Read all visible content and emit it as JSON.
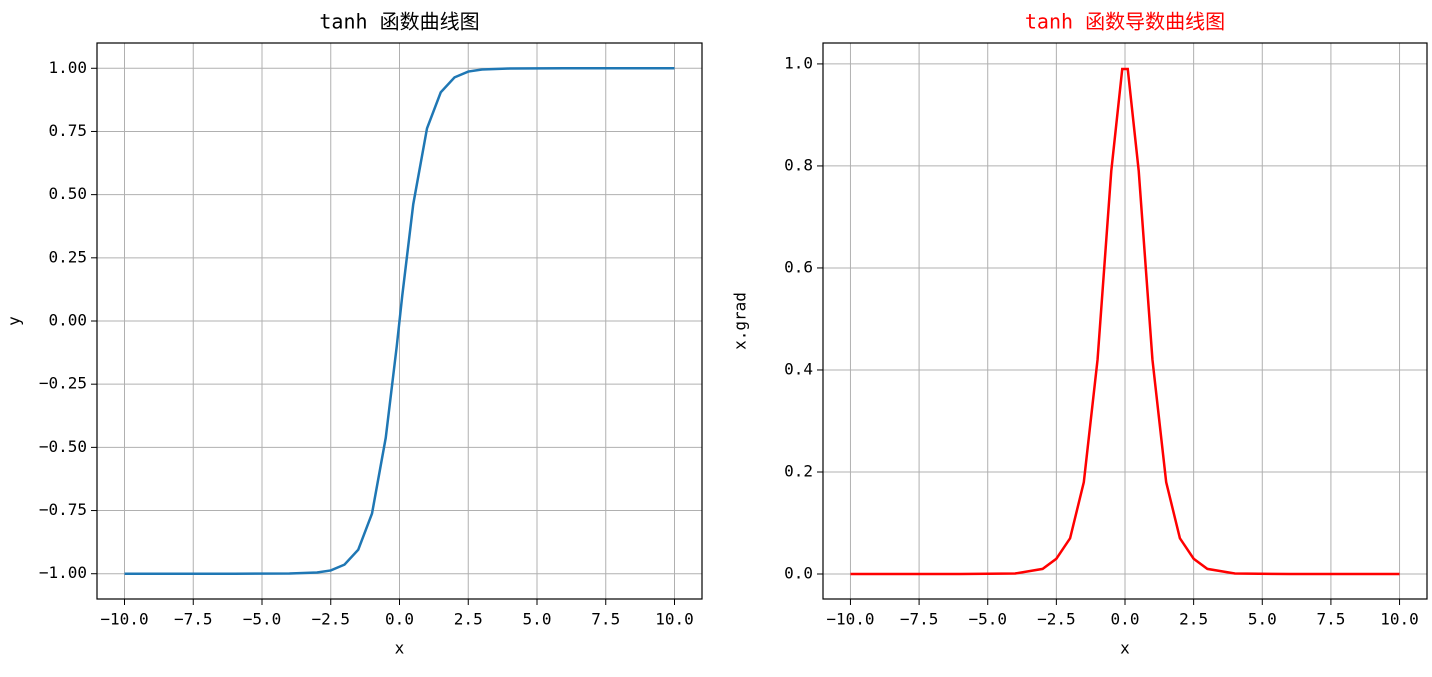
{
  "chart_data": [
    {
      "type": "line",
      "title": "tanh 函数曲线图",
      "title_color": "#000000",
      "xlabel": "x",
      "ylabel": "y",
      "x": [
        -10,
        -8,
        -6,
        -4,
        -3,
        -2.5,
        -2,
        -1.5,
        -1,
        -0.5,
        -0.1,
        0.1,
        0.5,
        1,
        1.5,
        2,
        2.5,
        3,
        4,
        6,
        8,
        10
      ],
      "series": [
        {
          "name": "tanh",
          "color": "#1f77b4",
          "values": [
            -1,
            -1,
            -1,
            -0.999,
            -0.995,
            -0.987,
            -0.964,
            -0.905,
            -0.762,
            -0.462,
            -0.1,
            0.1,
            0.462,
            0.762,
            0.905,
            0.964,
            0.987,
            0.995,
            0.999,
            1,
            1,
            1
          ]
        }
      ],
      "xlim": [
        -11,
        11
      ],
      "ylim": [
        -1.1,
        1.1
      ],
      "xticks": [
        {
          "value": -10,
          "label": "−10.0"
        },
        {
          "value": -7.5,
          "label": "−7.5"
        },
        {
          "value": -5,
          "label": "−5.0"
        },
        {
          "value": -2.5,
          "label": "−2.5"
        },
        {
          "value": 0,
          "label": "0.0"
        },
        2.5,
        {
          "value": 5,
          "label": "5.0"
        },
        7.5,
        {
          "value": 10,
          "label": "10.0"
        }
      ],
      "yticks": [
        {
          "value": -1,
          "label": "−1.00"
        },
        {
          "value": -0.75,
          "label": "−0.75"
        },
        {
          "value": -0.5,
          "label": "−0.50"
        },
        {
          "value": -0.25,
          "label": "−0.25"
        },
        {
          "value": 0,
          "label": "0.00"
        },
        0.25,
        {
          "value": 0.5,
          "label": "0.50"
        },
        0.75,
        {
          "value": 1,
          "label": "1.00"
        }
      ],
      "grid": true
    },
    {
      "type": "line",
      "title": "tanh 函数导数曲线图",
      "title_color": "#ff0000",
      "xlabel": "x",
      "ylabel": "x.grad",
      "x": [
        -10,
        -8,
        -6,
        -4,
        -3,
        -2.5,
        -2,
        -1.5,
        -1,
        -0.5,
        -0.1,
        0.1,
        0.5,
        1,
        1.5,
        2,
        2.5,
        3,
        4,
        6,
        8,
        10
      ],
      "series": [
        {
          "name": "x.grad",
          "color": "#ff0000",
          "values": [
            0,
            0,
            0,
            0.001,
            0.01,
            0.03,
            0.07,
            0.18,
            0.42,
            0.79,
            0.99,
            0.99,
            0.79,
            0.42,
            0.18,
            0.07,
            0.03,
            0.01,
            0.001,
            0,
            0,
            0
          ]
        }
      ],
      "xlim": [
        -11,
        11
      ],
      "ylim": [
        -0.049,
        1.041
      ],
      "xticks": [
        {
          "value": -10,
          "label": "−10.0"
        },
        {
          "value": -7.5,
          "label": "−7.5"
        },
        {
          "value": -5,
          "label": "−5.0"
        },
        {
          "value": -2.5,
          "label": "−2.5"
        },
        {
          "value": 0,
          "label": "0.0"
        },
        2.5,
        {
          "value": 5,
          "label": "5.0"
        },
        7.5,
        {
          "value": 10,
          "label": "10.0"
        }
      ],
      "yticks": [
        {
          "value": 0,
          "label": "0.0"
        },
        0.2,
        0.4,
        0.6,
        0.8,
        {
          "value": 1,
          "label": "1.0"
        }
      ],
      "grid": true
    }
  ]
}
